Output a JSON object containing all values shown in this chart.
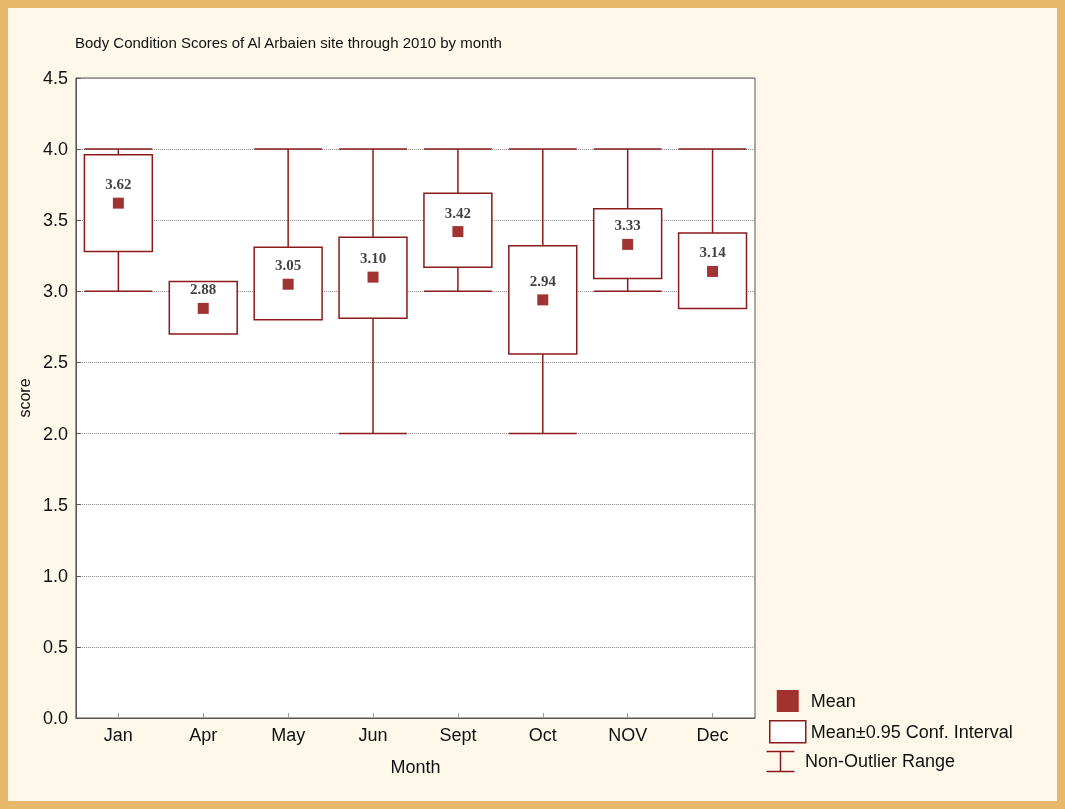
{
  "chart_data": {
    "type": "box",
    "title": "Body Condition Scores of Al Arbaien site through 2010 by month",
    "xlabel": "Month",
    "ylabel": "score",
    "categories": [
      "Jan",
      "Apr",
      "May",
      "Jun",
      "Sept",
      "Oct",
      "NOV",
      "Dec"
    ],
    "ylim": [
      0,
      4.5
    ],
    "yticks": [
      {
        "value": 0,
        "label": "0.0"
      },
      {
        "value": 0.5,
        "label": "0.5"
      },
      {
        "value": 1,
        "label": "1.0"
      },
      {
        "value": 1.5,
        "label": "1.5"
      },
      {
        "value": 2,
        "label": "2.0"
      },
      {
        "value": 2.5,
        "label": "2.5"
      },
      {
        "value": 3,
        "label": "3.0"
      },
      {
        "value": 3.5,
        "label": "3.5"
      },
      {
        "value": 4,
        "label": "4.0"
      },
      {
        "value": 4.5,
        "label": "4.5"
      }
    ],
    "grid": "y",
    "legend": "bottom right",
    "series": [
      {
        "name": "Mean±0.95 Conf. Interval",
        "color": "#8b1a1a",
        "boxes": [
          {
            "low": 3.0,
            "q1": 3.28,
            "q3": 3.96,
            "high": 4.0
          },
          {
            "low": 2.7,
            "q1": 2.7,
            "q3": 3.07,
            "high": 3.07
          },
          {
            "low": 2.8,
            "q1": 2.8,
            "q3": 3.31,
            "high": 4.0
          },
          {
            "low": 2.0,
            "q1": 2.81,
            "q3": 3.38,
            "high": 4.0
          },
          {
            "low": 3.0,
            "q1": 3.17,
            "q3": 3.69,
            "high": 4.0
          },
          {
            "low": 2.0,
            "q1": 2.56,
            "q3": 3.32,
            "high": 4.0
          },
          {
            "low": 3.0,
            "q1": 3.09,
            "q3": 3.58,
            "high": 4.0
          },
          {
            "low": 2.88,
            "q1": 2.88,
            "q3": 3.41,
            "high": 4.0
          }
        ]
      },
      {
        "name": "Mean",
        "type": "scatter",
        "marker": "square",
        "color": "#8b0000",
        "x": [
          "Jan",
          "Apr",
          "May",
          "Jun",
          "Sept",
          "Oct",
          "NOV",
          "Dec"
        ],
        "values": [
          3.62,
          2.88,
          3.05,
          3.1,
          3.42,
          2.94,
          3.33,
          3.14
        ],
        "value_labels": [
          "3.62",
          "2.88",
          "3.05",
          "3.10",
          "3.42",
          "2.94",
          "3.33",
          "3.14"
        ]
      }
    ],
    "annotations": [
      "Non-Outlier Range"
    ]
  }
}
